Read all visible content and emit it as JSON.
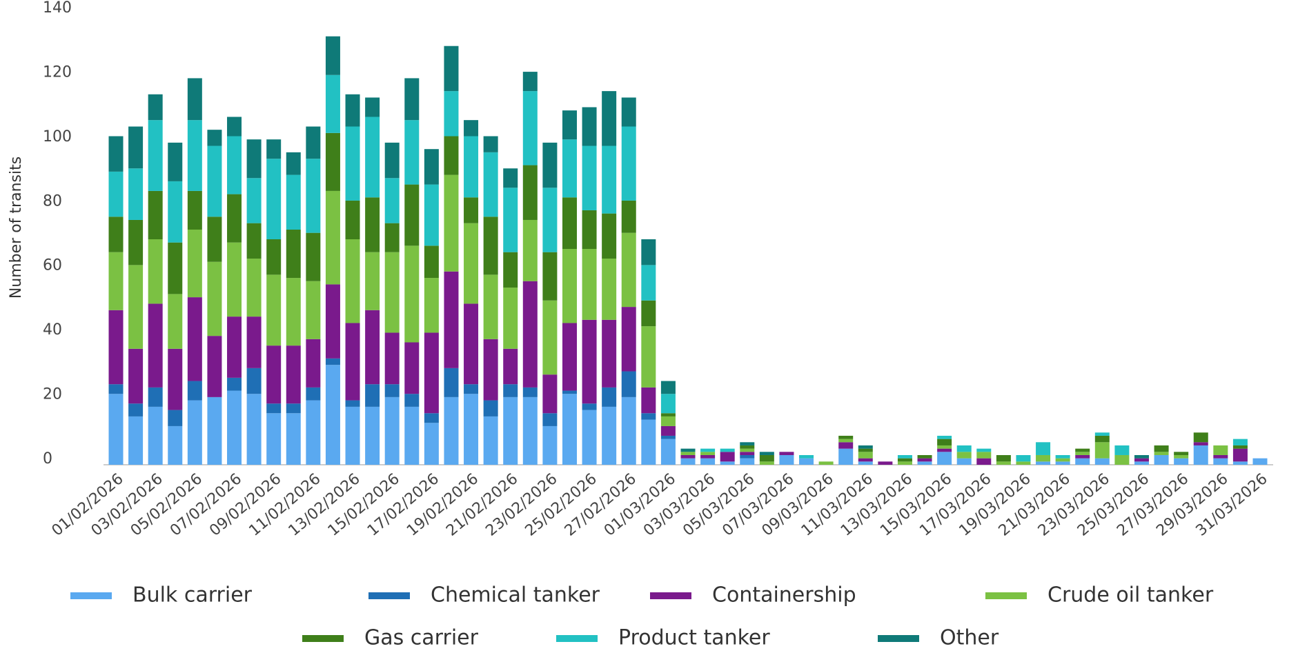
{
  "chart_data": {
    "type": "stacked-bar",
    "ylabel": "Number of transits",
    "categories": [
      "01/02/2026",
      null,
      "03/02/2026",
      null,
      "05/02/2026",
      null,
      "07/02/2026",
      null,
      "09/02/2026",
      null,
      "11/02/2026",
      null,
      "13/02/2026",
      null,
      "15/02/2026",
      null,
      "17/02/2026",
      null,
      "19/02/2026",
      null,
      "21/02/2026",
      null,
      "23/02/2026",
      null,
      "25/02/2026",
      null,
      "27/02/2026",
      null,
      "01/03/2026",
      null,
      "03/03/2026",
      null,
      "05/03/2026",
      null,
      "07/03/2026",
      null,
      "09/03/2026",
      null,
      "11/03/2026",
      null,
      "13/03/2026",
      null,
      "15/03/2026",
      null,
      "17/03/2026",
      null,
      "19/03/2026",
      null,
      "21/03/2026",
      null,
      "23/03/2026",
      null,
      "25/03/2026",
      null,
      "27/03/2026",
      null,
      "29/03/2026",
      null,
      "31/03/2026"
    ],
    "series": [
      {
        "name": "Bulk carrier",
        "color": "#5aa9f0",
        "values": [
          22,
          15,
          18,
          12,
          20,
          21,
          23,
          22,
          16,
          16,
          20,
          31,
          18,
          18,
          21,
          18,
          13,
          21,
          22,
          15,
          21,
          21,
          12,
          22,
          17,
          18,
          21,
          14,
          8,
          2,
          2,
          1,
          2,
          0,
          3,
          2,
          0,
          5,
          1,
          0,
          0,
          1,
          4,
          2,
          0,
          0,
          0,
          1,
          1,
          2,
          2,
          0,
          1,
          3,
          2,
          6,
          2,
          1,
          2
        ]
      },
      {
        "name": "Chemical tanker",
        "color": "#1f6fb5",
        "values": [
          3,
          4,
          6,
          5,
          6,
          0,
          4,
          8,
          3,
          3,
          4,
          2,
          2,
          7,
          4,
          4,
          3,
          9,
          3,
          5,
          4,
          3,
          4,
          1,
          2,
          6,
          8,
          2,
          1,
          0,
          0,
          0,
          1,
          0,
          0,
          0,
          0,
          0,
          0,
          0,
          0,
          0,
          0,
          0,
          0,
          0,
          0,
          0,
          0,
          0,
          0,
          0,
          0,
          0,
          0,
          0,
          0,
          0,
          0
        ]
      },
      {
        "name": "Containership",
        "color": "#7a1a8c",
        "values": [
          23,
          17,
          26,
          19,
          26,
          19,
          19,
          16,
          18,
          18,
          15,
          23,
          24,
          23,
          16,
          16,
          25,
          30,
          25,
          19,
          11,
          33,
          12,
          21,
          26,
          21,
          20,
          8,
          3,
          1,
          1,
          3,
          1,
          0,
          1,
          0,
          0,
          2,
          1,
          1,
          0,
          1,
          1,
          0,
          2,
          0,
          0,
          0,
          0,
          1,
          0,
          0,
          1,
          0,
          0,
          1,
          1,
          4,
          0
        ]
      },
      {
        "name": "Crude oil tanker",
        "color": "#7bc143",
        "values": [
          18,
          26,
          20,
          17,
          21,
          23,
          23,
          18,
          22,
          21,
          18,
          29,
          26,
          18,
          25,
          30,
          17,
          30,
          25,
          20,
          19,
          19,
          23,
          23,
          22,
          19,
          23,
          19,
          3,
          1,
          1,
          0,
          1,
          1,
          0,
          0,
          1,
          1,
          2,
          0,
          1,
          0,
          1,
          2,
          2,
          1,
          1,
          2,
          1,
          1,
          5,
          3,
          0,
          1,
          1,
          0,
          3,
          0,
          0
        ]
      },
      {
        "name": "Gas carrier",
        "color": "#3f7f1a",
        "values": [
          11,
          14,
          15,
          16,
          12,
          14,
          15,
          11,
          11,
          15,
          15,
          18,
          12,
          17,
          9,
          19,
          10,
          12,
          8,
          18,
          11,
          17,
          15,
          16,
          12,
          14,
          10,
          8,
          1,
          0,
          0,
          0,
          1,
          2,
          0,
          0,
          0,
          1,
          1,
          0,
          1,
          1,
          2,
          0,
          0,
          2,
          0,
          0,
          0,
          1,
          2,
          0,
          0,
          2,
          1,
          3,
          0,
          1,
          0
        ]
      },
      {
        "name": "Product tanker",
        "color": "#22c1c3",
        "values": [
          14,
          16,
          22,
          19,
          22,
          22,
          18,
          14,
          25,
          17,
          23,
          18,
          23,
          25,
          14,
          20,
          19,
          14,
          19,
          20,
          20,
          23,
          20,
          18,
          20,
          21,
          23,
          11,
          6,
          0,
          1,
          1,
          0,
          0,
          0,
          1,
          0,
          0,
          0,
          0,
          1,
          0,
          1,
          2,
          1,
          0,
          2,
          4,
          1,
          0,
          1,
          3,
          0,
          0,
          0,
          0,
          0,
          2,
          0
        ]
      },
      {
        "name": "Other",
        "color": "#0f7a78",
        "values": [
          11,
          13,
          8,
          12,
          13,
          5,
          6,
          12,
          6,
          7,
          10,
          12,
          10,
          6,
          11,
          13,
          11,
          14,
          5,
          5,
          6,
          6,
          14,
          9,
          12,
          17,
          9,
          8,
          4,
          1,
          0,
          0,
          1,
          1,
          0,
          0,
          0,
          0,
          1,
          0,
          0,
          0,
          0,
          0,
          0,
          0,
          0,
          0,
          0,
          0,
          0,
          0,
          1,
          0,
          0,
          0,
          0,
          0,
          0
        ]
      }
    ],
    "ylim": [
      0,
      140
    ],
    "yticks": [
      0,
      20,
      40,
      60,
      80,
      100,
      120,
      140
    ],
    "grid": false
  }
}
